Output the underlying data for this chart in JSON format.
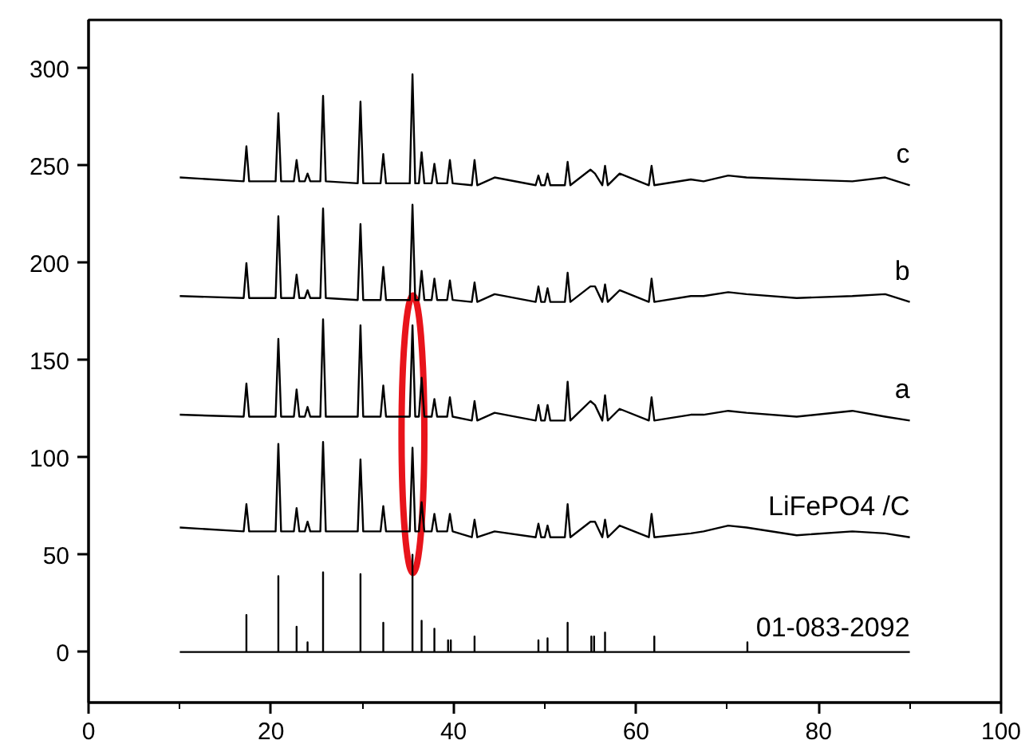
{
  "chart_data": {
    "type": "line",
    "xlim": [
      0,
      100
    ],
    "ylim": [
      -26,
      325
    ],
    "xticks": [
      0,
      20,
      40,
      60,
      80,
      100
    ],
    "yticks": [
      0,
      50,
      100,
      150,
      200,
      250,
      300
    ],
    "grid": false,
    "legend": false,
    "marker": "none",
    "line_style": "solid",
    "series": [
      {
        "name": "c",
        "color": "#000000",
        "x": [
          10,
          17.0,
          17.3,
          17.6,
          20.5,
          20.8,
          21.1,
          22.5,
          22.8,
          23.1,
          23.7,
          24.0,
          24.3,
          25.4,
          25.7,
          26.0,
          29.5,
          29.8,
          30.1,
          32.0,
          32.3,
          32.6,
          35.2,
          35.5,
          35.8,
          36.2,
          36.5,
          36.8,
          37.6,
          37.9,
          38.2,
          39.3,
          39.6,
          39.9,
          42.0,
          42.3,
          42.6,
          44.5,
          49.0,
          49.3,
          49.6,
          50.0,
          50.3,
          50.6,
          52.2,
          52.5,
          52.8,
          55.0,
          55.5,
          56.3,
          56.6,
          56.9,
          58.2,
          61.4,
          61.7,
          62.0,
          66,
          67.4,
          70.1,
          72.1,
          77.6,
          83.7,
          87.3,
          90
        ],
        "values": [
          244,
          242,
          260,
          242,
          242,
          277,
          242,
          242,
          253,
          242,
          242,
          246,
          242,
          242,
          286,
          242,
          241,
          283,
          241,
          241,
          256,
          241,
          241,
          297,
          241,
          241,
          257,
          241,
          241,
          251,
          241,
          241,
          253,
          241,
          240,
          253,
          240,
          244,
          240,
          245,
          240,
          240,
          246,
          240,
          240,
          252,
          240,
          248,
          246,
          240,
          250,
          240,
          246,
          240,
          250,
          240,
          243,
          242,
          245,
          244,
          243,
          242,
          244,
          240
        ]
      },
      {
        "name": "b",
        "color": "#000000",
        "x": [
          10,
          17.0,
          17.3,
          17.6,
          20.5,
          20.8,
          21.1,
          22.5,
          22.8,
          23.1,
          23.7,
          24.0,
          24.3,
          25.4,
          25.7,
          26.0,
          29.5,
          29.8,
          30.1,
          32.0,
          32.3,
          32.6,
          35.2,
          35.5,
          35.8,
          36.2,
          36.5,
          36.8,
          37.6,
          37.9,
          38.2,
          39.3,
          39.6,
          39.9,
          42.0,
          42.3,
          42.6,
          44.5,
          49.0,
          49.3,
          49.6,
          50.0,
          50.3,
          50.6,
          52.2,
          52.5,
          52.8,
          55.0,
          55.5,
          56.3,
          56.6,
          56.9,
          58.2,
          61.4,
          61.7,
          62.0,
          66,
          67.4,
          70.1,
          72.1,
          77.6,
          83.7,
          87.3,
          90
        ],
        "values": [
          183,
          182,
          200,
          182,
          182,
          224,
          182,
          182,
          194,
          182,
          182,
          186,
          182,
          182,
          228,
          182,
          181,
          220,
          181,
          181,
          198,
          181,
          181,
          230,
          181,
          181,
          196,
          181,
          181,
          192,
          181,
          181,
          191,
          181,
          180,
          190,
          180,
          184,
          180,
          188,
          180,
          180,
          187,
          180,
          180,
          195,
          180,
          188,
          188,
          180,
          189,
          180,
          186,
          180,
          192,
          180,
          183,
          183,
          185,
          184,
          182,
          183,
          184,
          180
        ]
      },
      {
        "name": "a",
        "color": "#000000",
        "x": [
          10,
          17.0,
          17.3,
          17.6,
          20.5,
          20.8,
          21.1,
          22.5,
          22.8,
          23.1,
          23.7,
          24.0,
          24.3,
          25.4,
          25.7,
          26.0,
          29.5,
          29.8,
          30.1,
          32.0,
          32.3,
          32.6,
          35.2,
          35.5,
          35.8,
          36.2,
          36.5,
          36.8,
          37.6,
          37.9,
          38.2,
          39.3,
          39.6,
          39.9,
          42.0,
          42.3,
          42.6,
          44.5,
          49.0,
          49.3,
          49.6,
          50.0,
          50.3,
          50.6,
          52.2,
          52.5,
          52.8,
          55.0,
          55.5,
          56.3,
          56.6,
          56.9,
          58.2,
          61.4,
          61.7,
          62.0,
          66,
          67.4,
          70.1,
          72.1,
          77.6,
          83.7,
          87.3,
          90
        ],
        "values": [
          122,
          121,
          138,
          121,
          121,
          161,
          121,
          121,
          135,
          121,
          121,
          126,
          121,
          121,
          171,
          121,
          121,
          168,
          121,
          121,
          137,
          121,
          121,
          168,
          121,
          121,
          141,
          121,
          121,
          130,
          121,
          121,
          131,
          121,
          119,
          129,
          119,
          123,
          119,
          127,
          119,
          119,
          127,
          119,
          119,
          139,
          119,
          129,
          127,
          119,
          132,
          119,
          125,
          119,
          131,
          119,
          122,
          122,
          124,
          123,
          121,
          124,
          121,
          119
        ]
      },
      {
        "name": "LiFePO4 /C",
        "color": "#000000",
        "x": [
          10,
          17.0,
          17.3,
          17.6,
          20.5,
          20.8,
          21.1,
          22.5,
          22.8,
          23.1,
          23.7,
          24.0,
          24.3,
          25.4,
          25.7,
          26.0,
          29.5,
          29.8,
          30.1,
          32.0,
          32.3,
          32.6,
          35.2,
          35.5,
          35.8,
          36.2,
          36.5,
          36.8,
          37.6,
          37.9,
          38.2,
          39.3,
          39.6,
          39.9,
          42.0,
          42.3,
          42.6,
          44.5,
          49.0,
          49.3,
          49.6,
          50.0,
          50.3,
          50.6,
          52.2,
          52.5,
          52.8,
          55.0,
          55.5,
          56.3,
          56.6,
          56.9,
          58.2,
          61.4,
          61.7,
          62.0,
          66,
          67.4,
          70.1,
          72.1,
          77.6,
          83.7,
          87.3,
          90
        ],
        "values": [
          64,
          62,
          76,
          62,
          62,
          107,
          62,
          62,
          74,
          62,
          62,
          67,
          62,
          62,
          108,
          62,
          62,
          99,
          62,
          62,
          75,
          62,
          62,
          105,
          62,
          62,
          77,
          62,
          62,
          71,
          62,
          62,
          71,
          62,
          59,
          68,
          59,
          62,
          59,
          66,
          59,
          59,
          65,
          59,
          59,
          76,
          59,
          67,
          67,
          59,
          68,
          59,
          65,
          59,
          71,
          59,
          61,
          62,
          65,
          64,
          60,
          62,
          61,
          59
        ]
      },
      {
        "name": "01-083-2092",
        "color": "#000000",
        "x": [
          10,
          17.3,
          17.3,
          17.3,
          20.8,
          20.8,
          20.8,
          22.8,
          22.8,
          22.8,
          24.0,
          24.0,
          24.0,
          25.7,
          25.7,
          25.7,
          29.8,
          29.8,
          29.8,
          32.3,
          32.3,
          32.3,
          35.5,
          35.5,
          35.5,
          36.5,
          36.5,
          36.5,
          37.9,
          37.9,
          37.9,
          39.4,
          39.4,
          39.4,
          39.7,
          39.7,
          39.7,
          42.3,
          42.3,
          42.3,
          49.3,
          49.3,
          49.3,
          50.3,
          50.3,
          50.3,
          52.5,
          52.5,
          52.5,
          55.1,
          55.1,
          55.1,
          55.4,
          55.4,
          55.4,
          56.6,
          56.6,
          56.6,
          62.0,
          62.0,
          62.0,
          72.2,
          72.2,
          72.2,
          90
        ],
        "values": [
          0,
          0,
          19,
          0,
          0,
          39,
          0,
          0,
          13,
          0,
          0,
          5,
          0,
          0,
          41,
          0,
          0,
          40,
          0,
          0,
          15,
          0,
          0,
          50,
          0,
          0,
          16,
          0,
          0,
          12,
          0,
          0,
          6,
          0,
          0,
          6,
          0,
          0,
          8,
          0,
          0,
          6,
          0,
          0,
          7,
          0,
          0,
          15,
          0,
          0,
          8,
          0,
          0,
          8,
          0,
          0,
          10,
          0,
          0,
          8,
          0,
          0,
          5,
          0,
          0
        ]
      }
    ]
  }
}
